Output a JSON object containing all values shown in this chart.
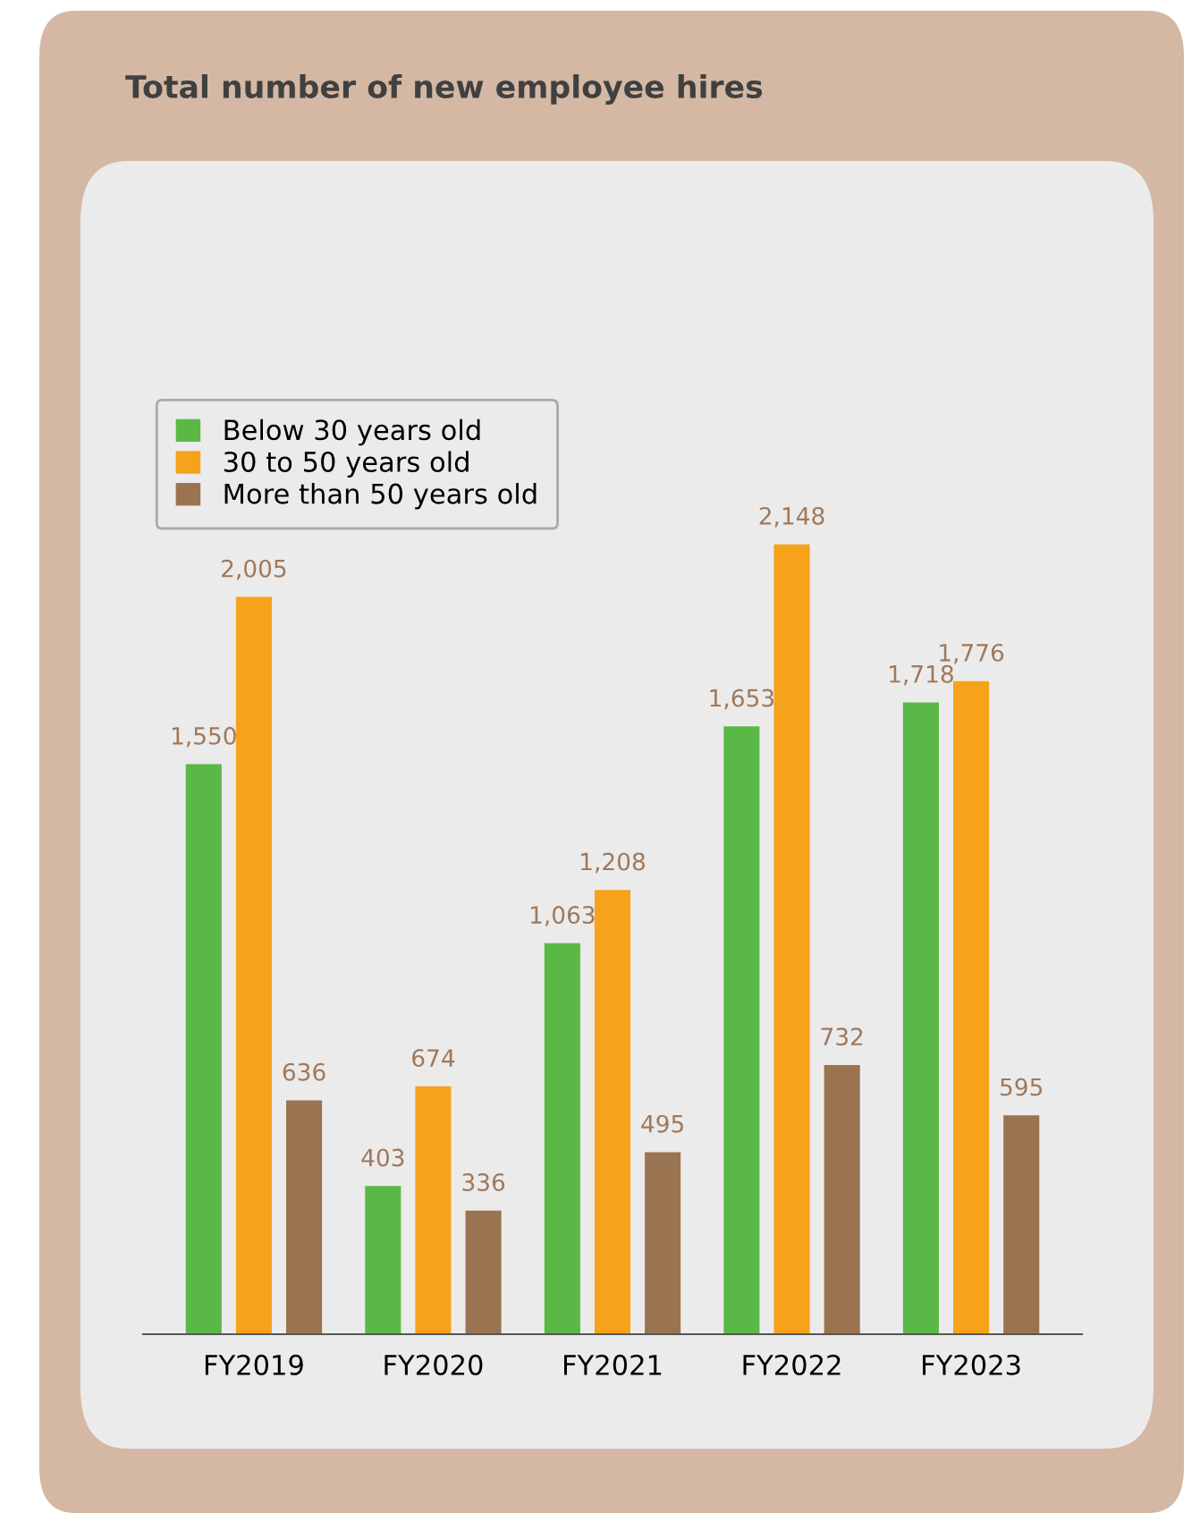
{
  "chart_data": {
    "type": "bar",
    "title": "Total number of new employee hires",
    "categories": [
      "FY2019",
      "FY2020",
      "FY2021",
      "FY2022",
      "FY2023"
    ],
    "series": [
      {
        "name": "Below 30 years old",
        "color": "#5ab946",
        "values": [
          1550,
          403,
          1063,
          1653,
          1718
        ],
        "value_labels": [
          "1,550",
          "403",
          "1,063",
          "1,653",
          "1,718"
        ]
      },
      {
        "name": "30 to 50 years old",
        "color": "#f7a21b",
        "values": [
          2005,
          674,
          1208,
          2148,
          1776
        ],
        "value_labels": [
          "2,005",
          "674",
          "1,208",
          "2,148",
          "1,776"
        ]
      },
      {
        "name": "More than 50 years old",
        "color": "#9a7450",
        "values": [
          636,
          336,
          495,
          732,
          595
        ],
        "value_labels": [
          "636",
          "336",
          "495",
          "732",
          "595"
        ]
      }
    ],
    "legend": "top left",
    "grid": false
  }
}
